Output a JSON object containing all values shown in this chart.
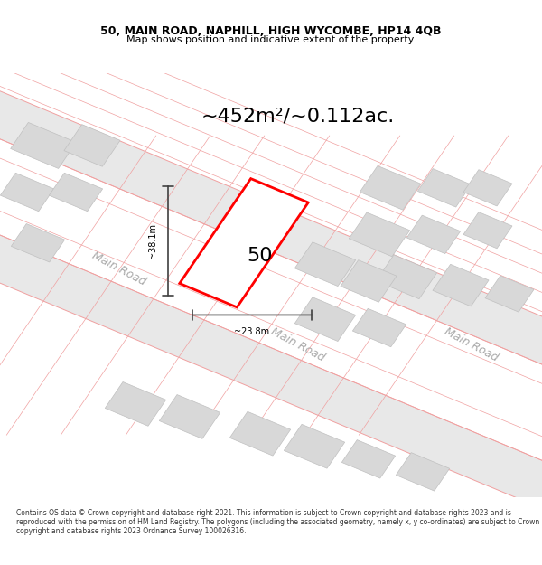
{
  "title_line1": "50, MAIN ROAD, NAPHILL, HIGH WYCOMBE, HP14 4QB",
  "title_line2": "Map shows position and indicative extent of the property.",
  "area_text": "~452m²/~0.112ac.",
  "label_50": "50",
  "dim_width": "~23.8m",
  "dim_height": "~38.1m",
  "road_label1": "Main Road",
  "road_label2": "Main Road",
  "road_label3": "Main Road",
  "footer": "Contains OS data © Crown copyright and database right 2021. This information is subject to Crown copyright and database rights 2023 and is reproduced with the permission of HM Land Registry. The polygons (including the associated geometry, namely x, y co-ordinates) are subject to Crown copyright and database rights 2023 Ordnance Survey 100026316.",
  "bg_color": "#ffffff",
  "map_bg": "#f5f5f5",
  "road_color": "#e8e8e8",
  "road_line_color": "#f0a0a0",
  "building_fill": "#d8d8d8",
  "building_edge": "#c0c0c0",
  "highlight_color": "#ff0000",
  "dim_line_color": "#404040",
  "text_gray": "#aaaaaa",
  "title_color": "#000000",
  "footer_color": "#333333"
}
